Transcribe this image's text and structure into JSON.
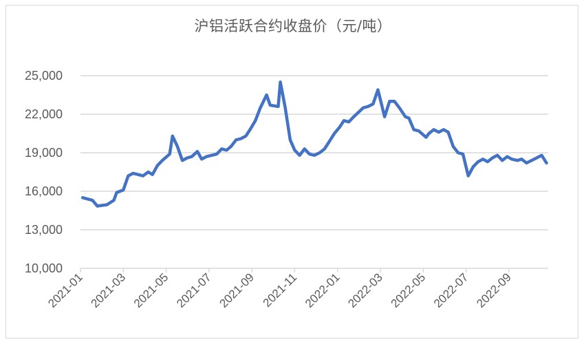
{
  "chart_data": {
    "type": "line",
    "title": "沪铝活跃合约收盘价（元/吨）",
    "xlabel": "",
    "ylabel": "",
    "ylim": [
      10000,
      25000
    ],
    "yticks": [
      10000,
      13000,
      16000,
      19000,
      22000,
      25000
    ],
    "ytick_labels": [
      "10,000",
      "13,000",
      "16,000",
      "19,000",
      "22,000",
      "25,000"
    ],
    "xtick_labels": [
      "2021-01",
      "2021-03",
      "2021-05",
      "2021-07",
      "2021-09",
      "2021-11",
      "2022-01",
      "2022-03",
      "2022-05",
      "2022-07",
      "2022-09"
    ],
    "grid": true,
    "legend": "none",
    "line_color": "#4472C4",
    "series": [
      {
        "name": "沪铝活跃合约收盘价",
        "x": [
          "2021-01-04",
          "2021-01-11",
          "2021-01-18",
          "2021-01-25",
          "2021-02-01",
          "2021-02-08",
          "2021-02-18",
          "2021-02-22",
          "2021-03-01",
          "2021-03-08",
          "2021-03-15",
          "2021-03-22",
          "2021-03-29",
          "2021-04-06",
          "2021-04-12",
          "2021-04-19",
          "2021-04-26",
          "2021-05-06",
          "2021-05-10",
          "2021-05-17",
          "2021-05-24",
          "2021-05-31",
          "2021-06-07",
          "2021-06-15",
          "2021-06-21",
          "2021-06-28",
          "2021-07-05",
          "2021-07-12",
          "2021-07-19",
          "2021-07-26",
          "2021-08-02",
          "2021-08-09",
          "2021-08-16",
          "2021-08-23",
          "2021-08-30",
          "2021-09-06",
          "2021-09-13",
          "2021-09-22",
          "2021-09-27",
          "2021-10-08",
          "2021-10-11",
          "2021-10-18",
          "2021-10-25",
          "2021-11-01",
          "2021-11-08",
          "2021-11-15",
          "2021-11-22",
          "2021-11-29",
          "2021-12-06",
          "2021-12-13",
          "2021-12-20",
          "2021-12-27",
          "2022-01-04",
          "2022-01-10",
          "2022-01-17",
          "2022-01-24",
          "2022-02-07",
          "2022-02-14",
          "2022-02-21",
          "2022-02-28",
          "2022-03-07",
          "2022-03-14",
          "2022-03-21",
          "2022-03-28",
          "2022-04-06",
          "2022-04-11",
          "2022-04-18",
          "2022-04-25",
          "2022-05-05",
          "2022-05-09",
          "2022-05-16",
          "2022-05-23",
          "2022-05-30",
          "2022-06-06",
          "2022-06-13",
          "2022-06-20",
          "2022-06-27",
          "2022-07-04",
          "2022-07-11",
          "2022-07-18",
          "2022-07-25",
          "2022-08-01",
          "2022-08-08",
          "2022-08-15",
          "2022-08-22",
          "2022-08-29",
          "2022-09-05",
          "2022-09-13",
          "2022-09-19",
          "2022-09-26",
          "2022-10-10",
          "2022-10-17",
          "2022-10-24"
        ],
        "values": [
          15500,
          15400,
          15300,
          14850,
          14900,
          14950,
          15300,
          15900,
          16100,
          17200,
          17400,
          17300,
          17200,
          17500,
          17300,
          18000,
          18400,
          18900,
          20300,
          19500,
          18400,
          18600,
          18700,
          19100,
          18500,
          18700,
          18800,
          18900,
          19300,
          19200,
          19500,
          20000,
          20100,
          20300,
          20900,
          21500,
          22500,
          23500,
          22700,
          22600,
          24500,
          22500,
          20000,
          19200,
          18800,
          19300,
          18900,
          18800,
          19000,
          19300,
          19900,
          20500,
          21000,
          21500,
          21400,
          21800,
          22500,
          22600,
          22800,
          23900,
          21800,
          23000,
          23000,
          22500,
          21800,
          21700,
          20800,
          20700,
          20200,
          20500,
          20800,
          20600,
          20800,
          20600,
          19500,
          19000,
          18900,
          17200,
          17900,
          18300,
          18500,
          18300,
          18600,
          18800,
          18400,
          18700,
          18500,
          18400,
          18500,
          18200,
          18600,
          18800,
          18200
        ]
      }
    ]
  }
}
